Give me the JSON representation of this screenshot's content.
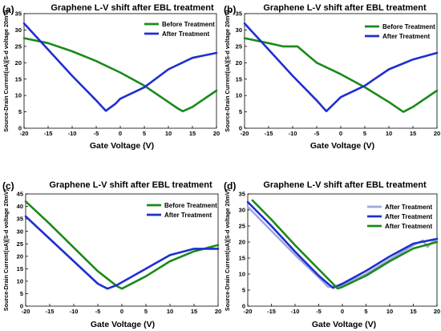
{
  "chart_data": [
    {
      "type": "line",
      "panel_label": "(a)",
      "title": "Graphene L-V shift after EBL treatment",
      "xlabel": "Gate Voltage (V)",
      "ylabel": "Source-Drain Current(uA)[S-d voltage 20mV)",
      "xlim": [
        -20,
        20
      ],
      "ylim": [
        0,
        35
      ],
      "xticks": [
        -20,
        -15,
        -10,
        -5,
        0,
        5,
        10,
        15,
        20
      ],
      "yticks": [
        0,
        5,
        10,
        15,
        20,
        25,
        30,
        35
      ],
      "legend_position": "top-right",
      "grid": false,
      "series": [
        {
          "name": "Before Treatment",
          "color": "#1a8a1a",
          "x": [
            -20,
            -15,
            -10,
            -5,
            0,
            5,
            10,
            12,
            13,
            15,
            20
          ],
          "y": [
            27.5,
            26,
            23.5,
            20.5,
            17,
            13,
            8,
            6,
            5.2,
            6.5,
            11.5
          ]
        },
        {
          "name": "After Treatment",
          "color": "#1f2fd0",
          "x": [
            -20,
            -15,
            -10,
            -5,
            -3,
            -1,
            0,
            5,
            10,
            15,
            20
          ],
          "y": [
            32,
            24,
            16,
            8.5,
            5.3,
            7.5,
            9,
            12.5,
            18,
            21.5,
            23
          ]
        }
      ]
    },
    {
      "type": "line",
      "panel_label": "(b)",
      "title": "Graphene L-V shift after EBL treatment",
      "xlabel": "Gate Voltage (V)",
      "ylabel": "Source-Drain Current(uA)[S-d voltage 20mV)",
      "xlim": [
        -20,
        20
      ],
      "ylim": [
        0,
        35
      ],
      "xticks": [
        -20,
        -15,
        -10,
        -5,
        0,
        5,
        10,
        15,
        20
      ],
      "yticks": [
        0,
        5,
        10,
        15,
        20,
        25,
        30,
        35
      ],
      "legend_position": "top-right",
      "grid": false,
      "series": [
        {
          "name": "Before Treatment",
          "color": "#1a8a1a",
          "x": [
            -20,
            -15,
            -12,
            -9,
            -5,
            0,
            5,
            10,
            13,
            15,
            20
          ],
          "y": [
            27.5,
            26,
            25,
            25,
            20,
            16.5,
            12.5,
            8,
            5,
            6.5,
            11.5
          ]
        },
        {
          "name": "After Treatment",
          "color": "#1f2fd0",
          "x": [
            -20,
            -15,
            -10,
            -5,
            -3,
            0,
            5,
            7,
            10,
            15,
            20
          ],
          "y": [
            32,
            24,
            16,
            8.5,
            5.2,
            9.5,
            13,
            15,
            18,
            21,
            23
          ]
        }
      ]
    },
    {
      "type": "line",
      "panel_label": "(c)",
      "title": "Graphene L-V shift after EBL treatment",
      "xlabel": "Gate Voltage (V)",
      "ylabel": "Source-Drain Current(uA)[S-d voltage 20mV)",
      "xlim": [
        -20,
        20
      ],
      "ylim": [
        0,
        45
      ],
      "xticks": [
        -20,
        -15,
        -10,
        -5,
        0,
        5,
        10,
        15,
        20
      ],
      "yticks": [
        0,
        5,
        10,
        15,
        20,
        25,
        30,
        35,
        40,
        45
      ],
      "legend_position": "top-right",
      "grid": false,
      "series": [
        {
          "name": "Before Treatment",
          "color": "#1a8a1a",
          "x": [
            -20,
            -15,
            -10,
            -5,
            -1,
            0,
            5,
            10,
            15,
            20
          ],
          "y": [
            42,
            33,
            23.5,
            14,
            8,
            7,
            12,
            18,
            22,
            24.5
          ]
        },
        {
          "name": "After Treatment",
          "color": "#1f2fd0",
          "x": [
            -20,
            -15,
            -10,
            -5,
            -3,
            -1,
            5,
            10,
            15,
            20
          ],
          "y": [
            36,
            27,
            18,
            9,
            7,
            8.5,
            15,
            20.5,
            23,
            23
          ]
        }
      ]
    },
    {
      "type": "line",
      "panel_label": "(d)",
      "title": "Graphene L-V shift after EBL treatment",
      "xlabel": "Gate Voltage (V)",
      "ylabel": "Source-Drain Current(uA)[S-d voltage 20mV)",
      "xlim": [
        -20,
        20
      ],
      "ylim": [
        0,
        35
      ],
      "xticks": [
        -20,
        -15,
        -10,
        -5,
        0,
        5,
        10,
        15,
        20
      ],
      "yticks": [
        0,
        5,
        10,
        15,
        20,
        25,
        30,
        35
      ],
      "legend_position": "top-right",
      "grid": false,
      "series": [
        {
          "name": "After Treatment",
          "color": "#9fa7e0",
          "x": [
            -20,
            -15,
            -10,
            -5,
            -3,
            0,
            5,
            10,
            15,
            17,
            18,
            19,
            20
          ],
          "y": [
            31,
            23.5,
            16,
            9,
            6,
            6.5,
            10,
            14.5,
            19,
            20.5,
            18.5,
            20,
            20.5
          ]
        },
        {
          "name": "After Treatment",
          "color": "#1f2fd0",
          "x": [
            -20,
            -15,
            -10,
            -5,
            -2,
            0,
            5,
            10,
            15,
            20
          ],
          "y": [
            32.5,
            25,
            17,
            9.5,
            5.7,
            7,
            11,
            15.5,
            19.5,
            21
          ]
        },
        {
          "name": "After Treatment",
          "color": "#1a8a1a",
          "x": [
            -19,
            -15,
            -10,
            -5,
            -1,
            0,
            5,
            10,
            15,
            20
          ],
          "y": [
            33,
            27,
            19,
            11.5,
            5.5,
            6,
            9.5,
            14,
            18,
            20
          ]
        }
      ]
    }
  ]
}
